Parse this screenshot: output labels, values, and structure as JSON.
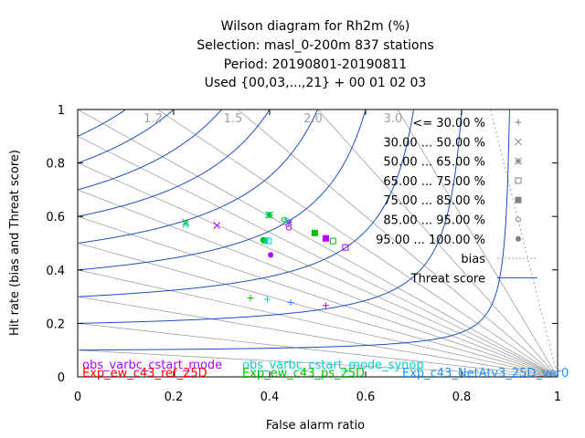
{
  "chart_data": {
    "type": "scatter",
    "title_lines": [
      "Wilson diagram  for Rh2m (%)",
      "Selection: masl_0-200m    837 stations",
      "Period: 20190801-20190811",
      "Used {00,03,...,21} + 00 01 02 03"
    ],
    "xlabel": "False alarm ratio",
    "ylabel": "Hit rate (bias and Threat score)",
    "xlim": [
      0,
      1
    ],
    "ylim": [
      0,
      1
    ],
    "x_ticks": [
      "0",
      "0.2",
      "0.4",
      "0.6",
      "0.8",
      "1"
    ],
    "y_ticks": [
      "0",
      "0.2",
      "0.4",
      "0.6",
      "0.8",
      "1"
    ],
    "bias_labels": [
      {
        "label": "1.2",
        "value": 1.2
      },
      {
        "label": "1.5",
        "value": 1.5
      },
      {
        "label": "2.0",
        "value": 2.0
      },
      {
        "label": "3.0",
        "value": 3.0
      }
    ],
    "bias_lines": [
      0.1,
      0.2,
      0.3,
      0.4,
      0.5,
      0.6,
      0.7,
      0.8,
      0.9,
      1.0,
      1.2,
      1.5,
      2.0,
      3.0
    ],
    "threat_scores": [
      0.1,
      0.2,
      0.3,
      0.4,
      0.5,
      0.6,
      0.7,
      0.8,
      0.9
    ],
    "legend_position": "top-right",
    "legend": [
      {
        "label": "<= 30.00 %",
        "marker": "plus"
      },
      {
        "label": "30.00 ... 50.00 %",
        "marker": "cross"
      },
      {
        "label": "50.00 ... 65.00 %",
        "marker": "star"
      },
      {
        "label": "65.00 ... 75.00 %",
        "marker": "open-square"
      },
      {
        "label": "75.00 ... 85.00 %",
        "marker": "filled-square"
      },
      {
        "label": "85.00 ... 95.00 %",
        "marker": "open-circle"
      },
      {
        "label": "95.00 ... 100.00 %",
        "marker": "filled-circle"
      },
      {
        "label": "bias",
        "marker": "dotted-line"
      },
      {
        "label": "Threat score",
        "marker": "solid-line"
      }
    ],
    "series": [
      {
        "name": "obs_varbc_cstart_mode",
        "color": "#b000ff",
        "points": [
          {
            "x": 0.517,
            "y": 0.267,
            "marker": "plus"
          },
          {
            "x": 0.29,
            "y": 0.566,
            "marker": "cross"
          },
          {
            "x": 0.44,
            "y": 0.578,
            "marker": "star"
          },
          {
            "x": 0.558,
            "y": 0.484,
            "marker": "open-square"
          },
          {
            "x": 0.517,
            "y": 0.518,
            "marker": "filled-square"
          },
          {
            "x": 0.44,
            "y": 0.557,
            "marker": "open-circle"
          },
          {
            "x": 0.402,
            "y": 0.456,
            "marker": "filled-circle"
          }
        ]
      },
      {
        "name": "Exp_ew_c43_ref_25D",
        "color": "#ff0000",
        "points": []
      },
      {
        "name": "obs_varbc_cstart_mode_synop",
        "color": "#00d0d0",
        "points": [
          {
            "x": 0.395,
            "y": 0.29,
            "marker": "plus"
          },
          {
            "x": 0.225,
            "y": 0.57,
            "marker": "cross"
          },
          {
            "x": 0.398,
            "y": 0.605,
            "marker": "star"
          },
          {
            "x": 0.398,
            "y": 0.508,
            "marker": "open-square"
          },
          {
            "x": 0.39,
            "y": 0.51,
            "marker": "filled-square"
          },
          {
            "x": 0.435,
            "y": 0.585,
            "marker": "open-circle"
          }
        ]
      },
      {
        "name": "Exp_ew_c43_ps_25D",
        "color": "#00c000",
        "points": [
          {
            "x": 0.36,
            "y": 0.295,
            "marker": "plus"
          },
          {
            "x": 0.225,
            "y": 0.578,
            "marker": "cross"
          },
          {
            "x": 0.4,
            "y": 0.606,
            "marker": "star"
          },
          {
            "x": 0.532,
            "y": 0.508,
            "marker": "open-square"
          },
          {
            "x": 0.494,
            "y": 0.538,
            "marker": "filled-square"
          },
          {
            "x": 0.43,
            "y": 0.588,
            "marker": "open-circle"
          },
          {
            "x": 0.386,
            "y": 0.512,
            "marker": "filled-circle"
          }
        ]
      },
      {
        "name": "Exp_c43_NetAtv3_25D_ver0",
        "color": "#1e90ff",
        "points": [
          {
            "x": 0.444,
            "y": 0.278,
            "marker": "plus"
          }
        ]
      }
    ],
    "experiment_labels": [
      {
        "label": "obs_varbc_cstart_mode",
        "color": "#b000ff"
      },
      {
        "label": "Exp_ew_c43_ref_25D",
        "color": "#ff0000"
      },
      {
        "label": "obs_varbc_cstart_mode_synop",
        "color": "#00d0d0"
      },
      {
        "label": "Exp_ew_c43_ps_25D",
        "color": "#00c000"
      },
      {
        "label": "Exp_c43_NetAtv3_25D_ver0",
        "color": "#1e90ff"
      }
    ],
    "colors": {
      "bias_line": "#a0a0a0",
      "threat_line": "#1f4fbf"
    }
  }
}
